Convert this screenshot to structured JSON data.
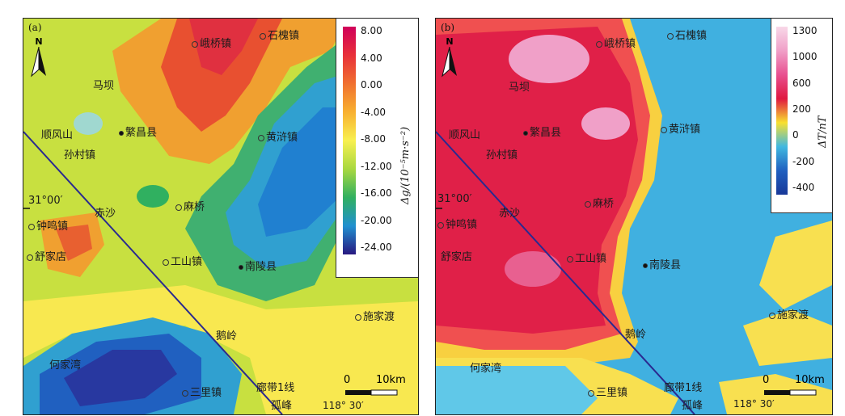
{
  "panels": {
    "a": {
      "label": "(a)",
      "legend": {
        "unit": "Δg/(10⁻⁵m·s⁻²)",
        "ticks": [
          "8.00",
          "4.00",
          "0.00",
          "-4.00",
          "-8.00",
          "-12.00",
          "-16.00",
          "-20.00",
          "-24.00"
        ],
        "colors": [
          "#d0005a",
          "#e8303a",
          "#f07030",
          "#f8b030",
          "#f8f050",
          "#a8d840",
          "#30b060",
          "#2090d0",
          "#281880"
        ]
      },
      "places": {
        "shiqiao": "峨桥镇",
        "shihuai": "石槐镇",
        "mahe": "马坝",
        "shunfeng": "顺风山",
        "fanchang": "繁昌县",
        "huangjia": "黄浒镇",
        "suncun": "孙村镇",
        "chisha": "赤沙",
        "maqiao": "麻桥",
        "zhongming": "钟鸣镇",
        "shujia": "舒家店",
        "gongshan": "工山镇",
        "nanling": "南陵县",
        "shijia": "施家渡",
        "eling": "鹅岭",
        "hejia": "何家湾",
        "sanli": "三里镇",
        "langdai": "廊带1线",
        "gufeng": "孤峰",
        "lat": "31°00′",
        "lon": "118° 30′"
      },
      "scale": {
        "zero": "0",
        "len": "10km"
      },
      "north": "N"
    },
    "b": {
      "label": "(b)",
      "legend": {
        "unit": "ΔT/nT",
        "ticks": [
          "1300",
          "1000",
          "600",
          "200",
          "0",
          "-200",
          "-400"
        ],
        "colors": [
          "#f8d8e8",
          "#f0a0c8",
          "#e85090",
          "#e01840",
          "#f8e030",
          "#40b8e0",
          "#2060c0",
          "#183898"
        ]
      },
      "places": {
        "shiqiao": "峨桥镇",
        "shihuai": "石槐镇",
        "mahe": "马坝",
        "shunfeng": "顺风山",
        "fanchang": "繁昌县",
        "huangjia": "黄浒镇",
        "suncun": "孙村镇",
        "chisha": "赤沙",
        "maqiao": "麻桥",
        "zhongming": "钟鸣镇",
        "shujia": "舒家店",
        "gongshan": "工山镇",
        "nanling": "南陵县",
        "shijia": "施家渡",
        "eling": "鹅岭",
        "hejia": "何家湾",
        "sanli": "三里镇",
        "langdai": "廊带1线",
        "gufeng": "孤峰",
        "lat": "31°00′",
        "lon": "118° 30′"
      },
      "scale": {
        "zero": "0",
        "len": "10km"
      },
      "north": "N"
    }
  }
}
